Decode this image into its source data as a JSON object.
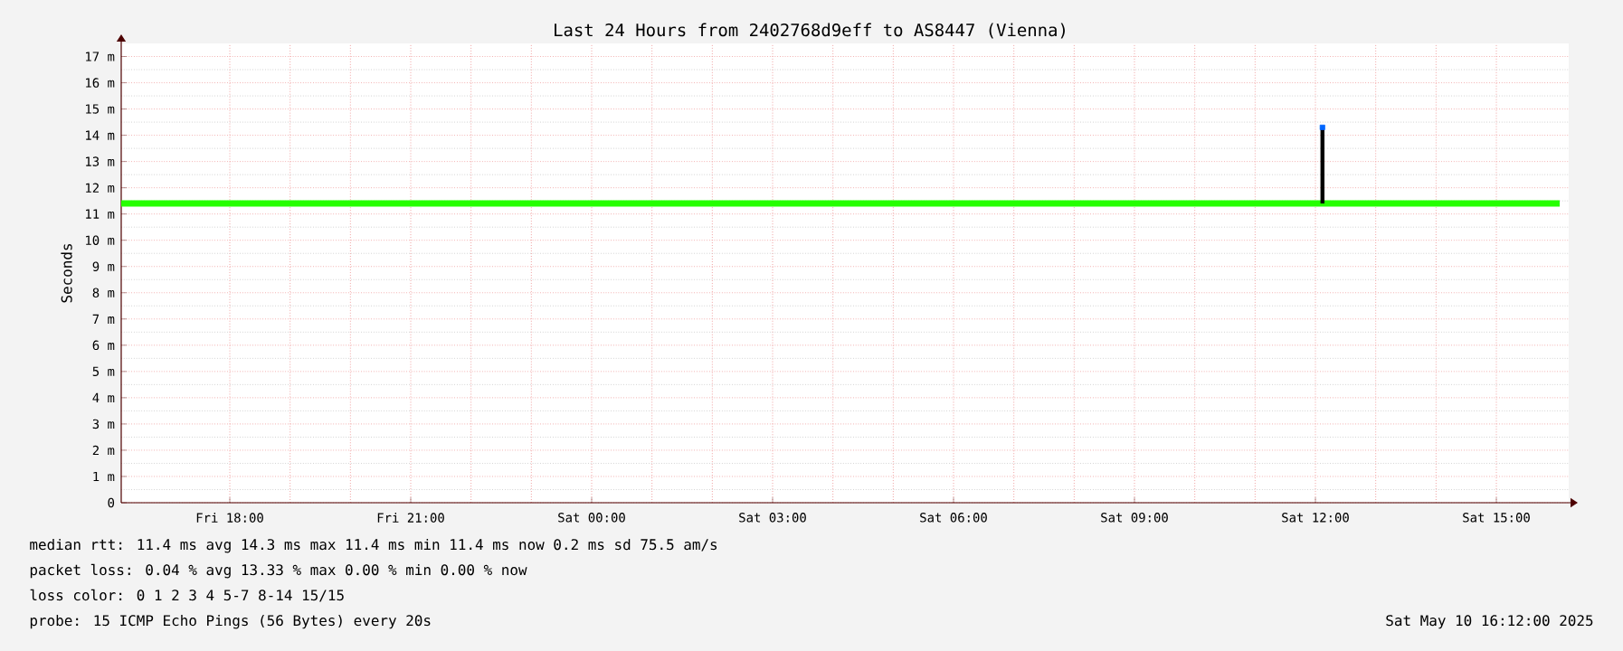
{
  "chart_data": {
    "type": "line",
    "title": "Last 24 Hours from 2402768d9eff to AS8447 (Vienna)",
    "ylabel": "Seconds",
    "xlim": [
      "2025-05-09T16:12",
      "2025-05-10T16:12"
    ],
    "ylim": [
      0,
      17.5
    ],
    "xticks": [
      {
        "value": "2025-05-09T18:00",
        "label": "Fri 18:00"
      },
      {
        "value": "2025-05-09T21:00",
        "label": "Fri 21:00"
      },
      {
        "value": "2025-05-10T00:00",
        "label": "Sat 00:00"
      },
      {
        "value": "2025-05-10T03:00",
        "label": "Sat 03:00"
      },
      {
        "value": "2025-05-10T06:00",
        "label": "Sat 06:00"
      },
      {
        "value": "2025-05-10T09:00",
        "label": "Sat 09:00"
      },
      {
        "value": "2025-05-10T12:00",
        "label": "Sat 12:00"
      },
      {
        "value": "2025-05-10T15:00",
        "label": "Sat 15:00"
      }
    ],
    "yticks": [
      {
        "value": 0,
        "label": "0"
      },
      {
        "value": 1,
        "label": "1 m"
      },
      {
        "value": 2,
        "label": "2 m"
      },
      {
        "value": 3,
        "label": "3 m"
      },
      {
        "value": 4,
        "label": "4 m"
      },
      {
        "value": 5,
        "label": "5 m"
      },
      {
        "value": 6,
        "label": "6 m"
      },
      {
        "value": 7,
        "label": "7 m"
      },
      {
        "value": 8,
        "label": "8 m"
      },
      {
        "value": 9,
        "label": "9 m"
      },
      {
        "value": 10,
        "label": "10 m"
      },
      {
        "value": 11,
        "label": "11 m"
      },
      {
        "value": 12,
        "label": "12 m"
      },
      {
        "value": 13,
        "label": "13 m"
      },
      {
        "value": 14,
        "label": "14 m"
      },
      {
        "value": 15,
        "label": "15 m"
      },
      {
        "value": 16,
        "label": "16 m"
      },
      {
        "value": 17,
        "label": "17 m"
      }
    ],
    "grid": true,
    "series": [
      {
        "color": "#26ff00",
        "x": [
          "2025-05-09T16:12",
          "2025-05-09T18:00",
          "2025-05-09T20:00",
          "2025-05-09T22:00",
          "2025-05-10T00:00",
          "2025-05-10T02:00",
          "2025-05-10T04:00",
          "2025-05-10T06:00",
          "2025-05-10T08:00",
          "2025-05-10T10:00",
          "2025-05-10T12:05",
          "2025-05-10T12:10",
          "2025-05-10T14:00",
          "2025-05-10T16:03"
        ],
        "values": [
          11.4,
          11.4,
          11.4,
          11.4,
          11.4,
          11.4,
          11.4,
          11.4,
          11.4,
          11.4,
          11.4,
          11.4,
          11.4,
          11.4
        ]
      },
      {
        "type": "line",
        "color": "#000000",
        "x": [
          "2025-05-10T12:07",
          "2025-05-10T12:07"
        ],
        "values": [
          11.4,
          14.3
        ]
      },
      {
        "type": "scatter",
        "color": "#0066ff",
        "x": [
          "2025-05-10T12:07"
        ],
        "values": [
          14.3
        ]
      }
    ],
    "annotations": [
      "median rtt: 11.4 ms avg 14.3 ms max 11.4 ms min 11.4 ms now 0.2 ms sd 75.5 am/s",
      "packet loss: 0.04 % avg 13.33 % max 0.00 % min 0.00 % now",
      "loss color: 0 1 2 3 4 5-7 8-14 15/15",
      "probe: 15 ICMP Echo Pings (56 Bytes) every 20s",
      "Sat May 10 16:12:00 2025"
    ]
  }
}
